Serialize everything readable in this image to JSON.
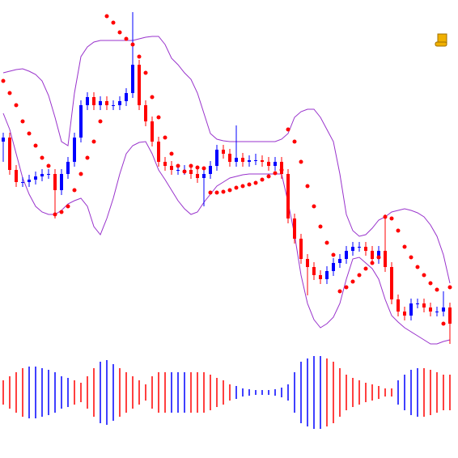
{
  "chart_data": [
    {
      "type": "candlestick",
      "ylim": [
        100,
        540
      ],
      "up_color": "#0000ff",
      "down_color": "#ff0000",
      "open": [
        365,
        370,
        330,
        315,
        315,
        318,
        322,
        325,
        325,
        305,
        325,
        340,
        370,
        410,
        420,
        410,
        415,
        410,
        410,
        415,
        425,
        460,
        410,
        390,
        365,
        340,
        335,
        330,
        330,
        330,
        325,
        320,
        325,
        335,
        355,
        350,
        340,
        345,
        340,
        342,
        342,
        340,
        335,
        340,
        325,
        270,
        245,
        220,
        210,
        200,
        195,
        205,
        215,
        220,
        230,
        235,
        235,
        230,
        220,
        230,
        210,
        170,
        155,
        150,
        165,
        165,
        160,
        155,
        155,
        160
      ],
      "high": [
        376,
        376,
        336,
        321,
        324,
        328,
        331,
        331,
        331,
        331,
        346,
        376,
        416,
        426,
        426,
        421,
        421,
        416,
        421,
        431,
        525,
        466,
        416,
        396,
        371,
        346,
        341,
        336,
        336,
        336,
        331,
        331,
        341,
        361,
        361,
        356,
        385,
        351,
        348,
        350,
        348,
        346,
        346,
        346,
        331,
        276,
        251,
        226,
        216,
        206,
        211,
        221,
        226,
        236,
        241,
        241,
        241,
        236,
        236,
        275,
        216,
        176,
        161,
        171,
        171,
        171,
        166,
        161,
        180,
        166
      ],
      "low": [
        340,
        324,
        309,
        309,
        309,
        312,
        316,
        319,
        270,
        299,
        319,
        334,
        364,
        404,
        404,
        404,
        404,
        404,
        404,
        409,
        419,
        404,
        384,
        359,
        334,
        329,
        324,
        324,
        324,
        319,
        314,
        285,
        319,
        329,
        344,
        334,
        334,
        334,
        334,
        336,
        334,
        329,
        329,
        319,
        264,
        239,
        214,
        175,
        194,
        189,
        189,
        199,
        209,
        214,
        224,
        229,
        224,
        214,
        214,
        204,
        164,
        149,
        144,
        144,
        159,
        154,
        149,
        149,
        149,
        115
      ],
      "close": [
        370,
        330,
        315,
        315,
        318,
        322,
        325,
        325,
        305,
        325,
        340,
        370,
        410,
        420,
        410,
        415,
        410,
        410,
        415,
        425,
        460,
        410,
        390,
        365,
        340,
        335,
        330,
        330,
        330,
        325,
        320,
        325,
        335,
        355,
        350,
        340,
        345,
        340,
        342,
        342,
        340,
        335,
        340,
        325,
        270,
        245,
        220,
        210,
        200,
        195,
        205,
        215,
        220,
        230,
        235,
        235,
        230,
        220,
        230,
        210,
        170,
        155,
        150,
        165,
        165,
        160,
        155,
        155,
        160,
        140
      ],
      "lines": [
        {
          "color": "#9933cc",
          "values": [
            450,
            452,
            454,
            455,
            452,
            448,
            440,
            422,
            395,
            365,
            360,
            425,
            470,
            482,
            488,
            490,
            490,
            490,
            490,
            490,
            490,
            492,
            494,
            495,
            495,
            485,
            468,
            460,
            450,
            442,
            425,
            400,
            375,
            368,
            366,
            365,
            365,
            365,
            365,
            365,
            365,
            365,
            365,
            368,
            375,
            395,
            402,
            405,
            405,
            395,
            380,
            365,
            325,
            275,
            255,
            248,
            250,
            258,
            268,
            272,
            278,
            280,
            282,
            280,
            277,
            272,
            262,
            248,
            225,
            190
          ]
        },
        {
          "color": "#9933cc",
          "values": [
            400,
            380,
            350,
            320,
            300,
            285,
            278,
            275,
            275,
            280,
            288,
            292,
            295,
            285,
            260,
            250,
            270,
            295,
            325,
            350,
            360,
            364,
            365,
            350,
            330,
            318,
            305,
            292,
            282,
            275,
            278,
            290,
            300,
            310,
            315,
            320,
            322,
            324,
            325,
            325,
            325,
            325,
            325,
            325,
            290,
            250,
            200,
            165,
            145,
            135,
            140,
            148,
            165,
            195,
            220,
            222,
            215,
            208,
            195,
            170,
            150,
            142,
            135,
            130,
            125,
            120,
            115,
            115,
            118,
            120
          ]
        }
      ],
      "dots": {
        "color": "#ff0000",
        "values": [
          440,
          425,
          410,
          390,
          375,
          360,
          345,
          335,
          275,
          278,
          285,
          305,
          325,
          345,
          365,
          390,
          520,
          512,
          500,
          492,
          485,
          470,
          450,
          420,
          395,
          370,
          350,
          335,
          328,
          335,
          333,
          332,
          302,
          302,
          303,
          305,
          308,
          310,
          312,
          314,
          318,
          322,
          326,
          330,
          380,
          365,
          340,
          310,
          285,
          260,
          240,
          225,
          180,
          185,
          192,
          200,
          208,
          215,
          222,
          272,
          270,
          255,
          235,
          222,
          210,
          200,
          190,
          182,
          140,
          185
        ]
      }
    },
    {
      "type": "bar",
      "ylim": [
        -50,
        50
      ],
      "values": [
        15,
        20,
        25,
        30,
        32,
        32,
        30,
        28,
        25,
        20,
        18,
        15,
        12,
        20,
        30,
        38,
        40,
        35,
        30,
        25,
        20,
        15,
        10,
        20,
        25,
        25,
        25,
        25,
        25,
        25,
        25,
        25,
        22,
        18,
        15,
        10,
        8,
        5,
        4,
        3,
        3,
        3,
        4,
        6,
        10,
        25,
        38,
        42,
        45,
        45,
        42,
        38,
        30,
        22,
        18,
        15,
        12,
        10,
        8,
        5,
        5,
        15,
        22,
        28,
        30,
        30,
        28,
        25,
        22,
        22
      ],
      "colors": [
        "#ff0000",
        "#ff0000",
        "#ff0000",
        "#ff0000",
        "#0000ff",
        "#0000ff",
        "#0000ff",
        "#0000ff",
        "#0000ff",
        "#0000ff",
        "#0000ff",
        "#ff0000",
        "#ff0000",
        "#ff0000",
        "#ff0000",
        "#0000ff",
        "#0000ff",
        "#0000ff",
        "#ff0000",
        "#ff0000",
        "#ff0000",
        "#ff0000",
        "#ff0000",
        "#ff0000",
        "#ff0000",
        "#ff0000",
        "#0000ff",
        "#0000ff",
        "#0000ff",
        "#ff0000",
        "#ff0000",
        "#ff0000",
        "#ff0000",
        "#ff0000",
        "#ff0000",
        "#ff0000",
        "#0000ff",
        "#0000ff",
        "#0000ff",
        "#0000ff",
        "#0000ff",
        "#0000ff",
        "#0000ff",
        "#0000ff",
        "#0000ff",
        "#0000ff",
        "#0000ff",
        "#0000ff",
        "#0000ff",
        "#0000ff",
        "#ff0000",
        "#ff0000",
        "#ff0000",
        "#ff0000",
        "#ff0000",
        "#ff0000",
        "#ff0000",
        "#ff0000",
        "#ff0000",
        "#ff0000",
        "#ff0000",
        "#0000ff",
        "#0000ff",
        "#0000ff",
        "#0000ff",
        "#ff0000",
        "#ff0000",
        "#ff0000",
        "#ff0000",
        "#ff0000"
      ]
    }
  ]
}
